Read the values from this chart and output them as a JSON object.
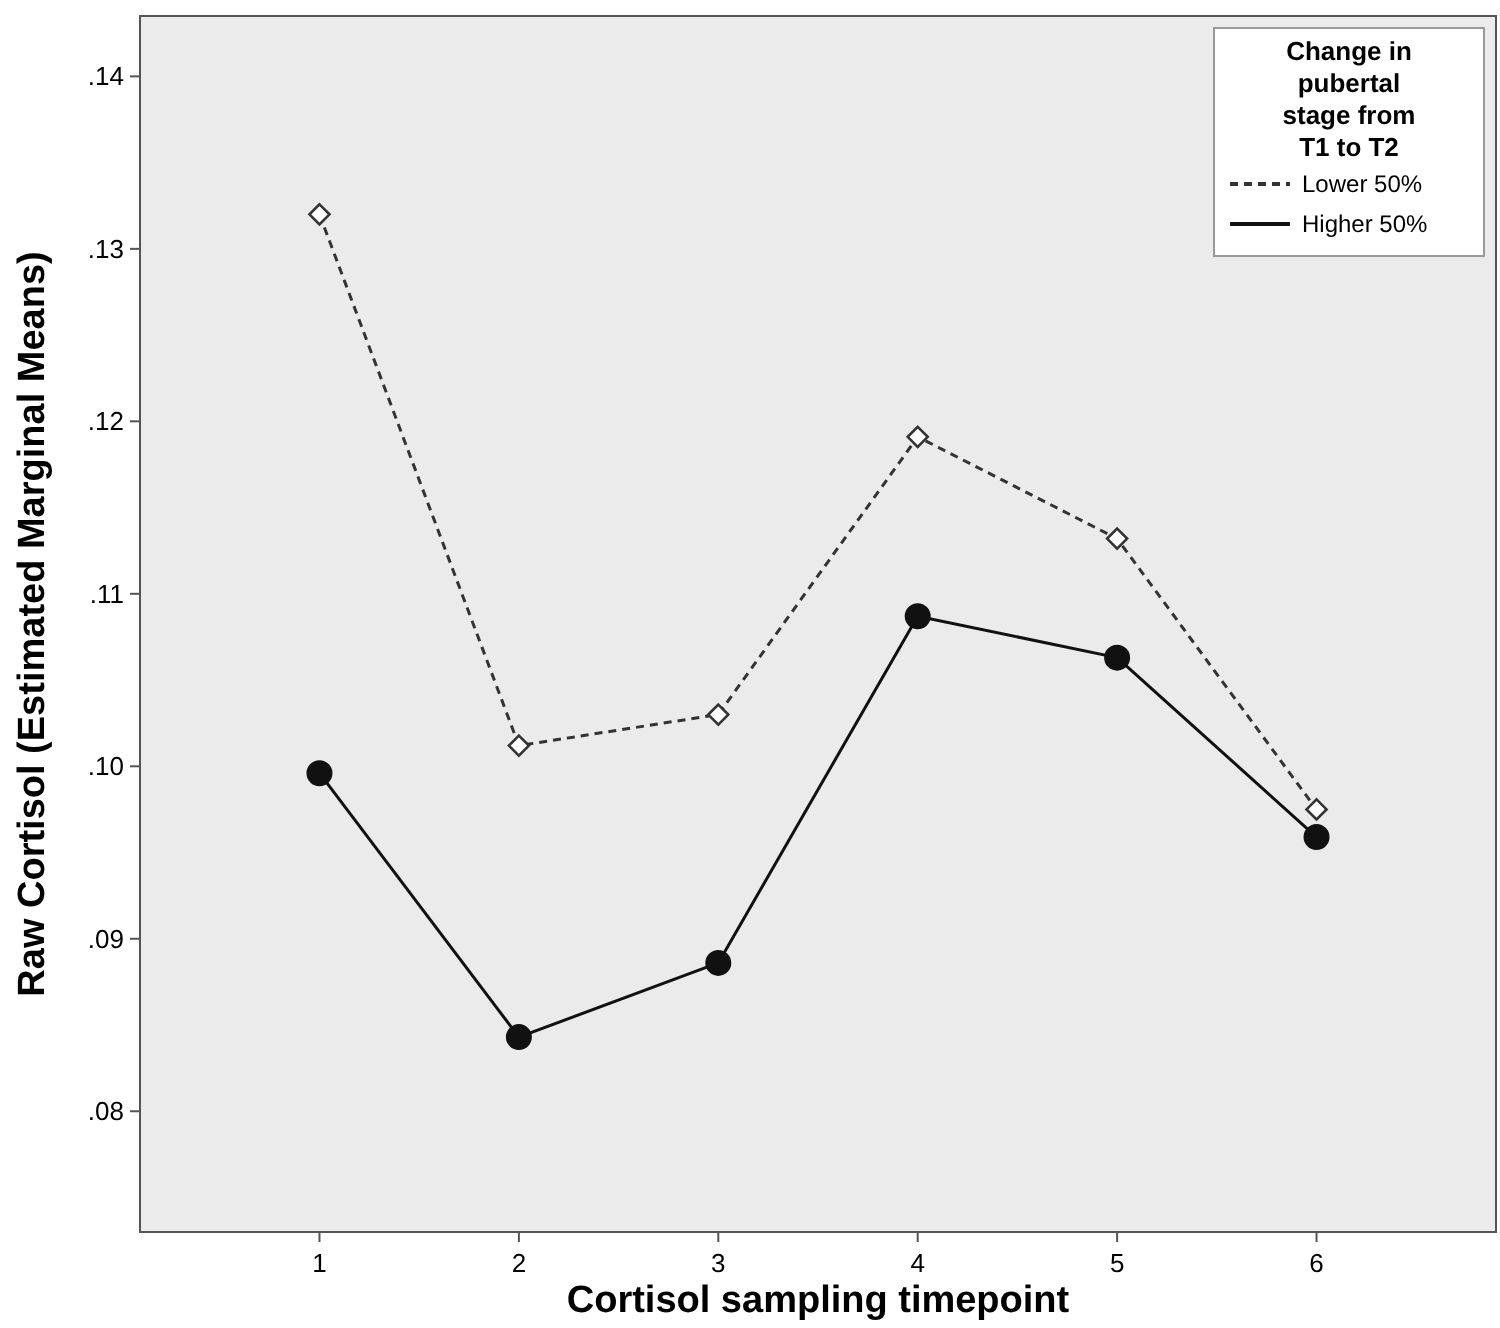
{
  "chart_data": {
    "type": "line",
    "xlabel": "Cortisol sampling timepoint",
    "ylabel": "Raw Cortisol (Estimated Marginal Means)",
    "legend_title": "Change in pubertal stage from T1 to T2",
    "legend": "top right",
    "grid": false,
    "categories": [
      "1",
      "2",
      "3",
      "4",
      "5",
      "6"
    ],
    "ylim": [
      0.073,
      0.1435
    ],
    "yticks": [
      {
        "value": 0.08,
        "label": ".08"
      },
      {
        "value": 0.09,
        "label": ".09"
      },
      {
        "value": 0.1,
        "label": ".10"
      },
      {
        "value": 0.11,
        "label": ".11"
      },
      {
        "value": 0.12,
        "label": ".12"
      },
      {
        "value": 0.13,
        "label": ".13"
      },
      {
        "value": 0.14,
        "label": ".14"
      }
    ],
    "series": [
      {
        "name": "Lower 50%",
        "color": "#333333",
        "line_style": "dashed",
        "marker": "diamond",
        "values": [
          0.132,
          0.1012,
          0.103,
          0.1191,
          0.1132,
          0.0975
        ]
      },
      {
        "name": "Higher 50%",
        "color": "#111111",
        "line_style": "solid",
        "marker": "circle",
        "values": [
          0.0996,
          0.0843,
          0.0886,
          0.1087,
          0.1063,
          0.0959
        ]
      }
    ]
  }
}
